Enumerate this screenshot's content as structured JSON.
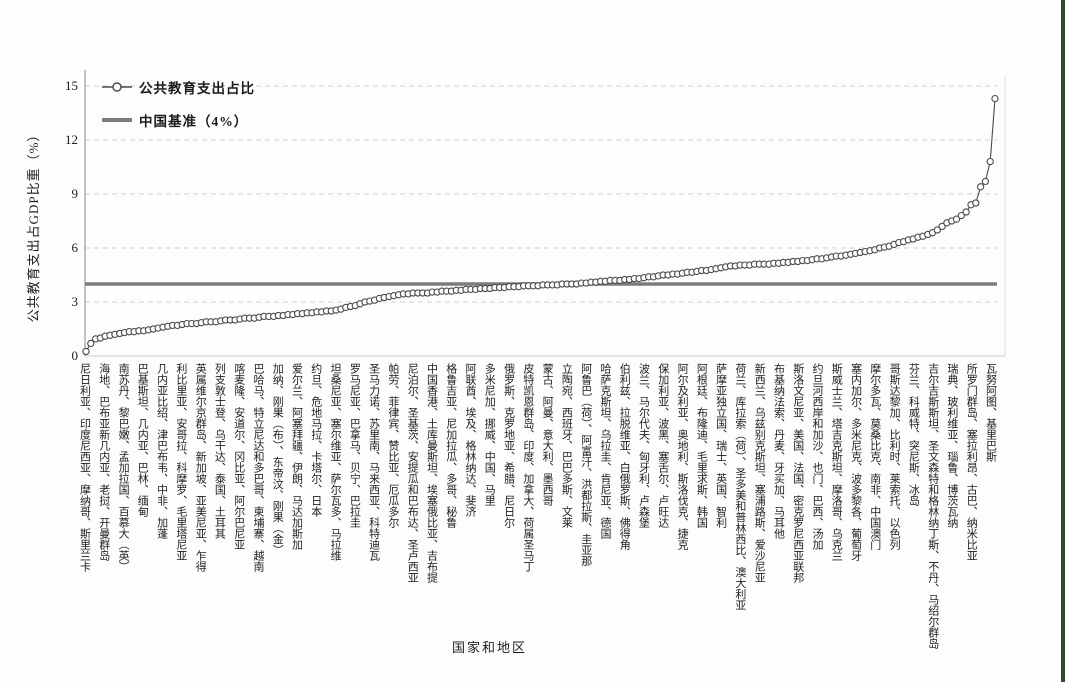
{
  "page": {
    "background": "#fdfdfc",
    "edge_strip_color": "#2e4b34"
  },
  "chart_data": {
    "type": "line",
    "xlabel": "国家和地区",
    "ylabel": "公共教育支出占GDP比重（%）",
    "ylim": [
      0,
      15
    ],
    "yticks": [
      0,
      3,
      6,
      9,
      12,
      15
    ],
    "grid": "dashed-horizontal",
    "legend_position": "top-left-inside",
    "benchmark": 4,
    "legend": [
      {
        "label": "公共教育支出占比",
        "marker": "circle-line"
      },
      {
        "label": "中国基准（4%）",
        "marker": "thick-line"
      }
    ],
    "label_group_size": 4,
    "categories": [
      "尼日利亚",
      "印度尼西亚",
      "摩纳哥",
      "斯里兰卡",
      "海地",
      "巴布亚新几内亚",
      "老挝",
      "开曼群岛",
      "南苏丹",
      "黎巴嫩",
      "孟加拉国",
      "百慕大（英）",
      "巴基斯坦",
      "几内亚",
      "巴林",
      "缅甸",
      "几内亚比绍",
      "津巴布韦",
      "中非",
      "加蓬",
      "利比里亚",
      "安哥拉",
      "科摩罗",
      "毛里塔尼亚",
      "英属维尔京群岛",
      "新加坡",
      "亚美尼亚",
      "乍得",
      "列支敦士登",
      "乌干达",
      "泰国",
      "土耳其",
      "喀麦隆",
      "安道尔",
      "冈比亚",
      "阿尔巴尼亚",
      "巴哈马",
      "特立尼达和多巴哥",
      "柬埔寨",
      "越南",
      "加纳",
      "刚果（布）",
      "东帝汶",
      "刚果（金）",
      "爱尔兰",
      "阿塞拜疆",
      "伊朗",
      "马达加斯加",
      "约旦",
      "危地马拉",
      "卡塔尔",
      "日本",
      "坦桑尼亚",
      "塞尔维亚",
      "萨尔瓦多",
      "马拉维",
      "罗马尼亚",
      "巴拿马",
      "贝宁",
      "巴拉圭",
      "圣马力诺",
      "苏里南",
      "马来西亚",
      "科特迪瓦",
      "帕劳",
      "菲律宾",
      "赞比亚",
      "厄瓜多尔",
      "尼泊尔",
      "圣基茨",
      "安提瓜和巴布达",
      "圣卢西亚",
      "中国香港",
      "土库曼斯坦",
      "埃塞俄比亚",
      "吉布提",
      "格鲁吉亚",
      "尼加拉瓜",
      "多哥",
      "秘鲁",
      "阿联酋",
      "埃及",
      "格林纳达",
      "斐济",
      "多米尼加",
      "挪威",
      "中国",
      "马里",
      "俄罗斯",
      "克罗地亚",
      "希腊",
      "尼日尔",
      "皮特凯恩群岛",
      "印度",
      "加拿大",
      "荷属圣马丁",
      "蒙古",
      "阿曼",
      "意大利",
      "墨西哥",
      "立陶宛",
      "西班牙",
      "巴巴多斯",
      "文莱",
      "阿鲁巴（荷）",
      "阿富汗",
      "洪都拉斯",
      "圭亚那",
      "哈萨克斯坦",
      "乌拉圭",
      "肯尼亚",
      "德国",
      "伯利兹",
      "拉脱维亚",
      "白俄罗斯",
      "佛得角",
      "波兰",
      "马尔代夫",
      "匈牙利",
      "卢森堡",
      "保加利亚",
      "波黑",
      "塞舌尔",
      "卢旺达",
      "阿尔及利亚",
      "奥地利",
      "斯洛伐克",
      "捷克",
      "阿根廷",
      "布隆迪",
      "毛里求斯",
      "韩国",
      "萨摩亚独立国",
      "瑞士",
      "英国",
      "智利",
      "荷兰",
      "库拉索（荷）",
      "圣多美和普林西比",
      "澳大利亚",
      "新西兰",
      "乌兹别克斯坦",
      "塞浦路斯",
      "爱沙尼亚",
      "布基纳法索",
      "丹麦",
      "牙买加",
      "马耳他",
      "斯洛文尼亚",
      "美国",
      "法国",
      "密克罗尼西亚联邦",
      "约旦河西岸和加沙",
      "也门",
      "巴西",
      "汤加",
      "斯威士兰",
      "塔吉克斯坦",
      "摩洛哥",
      "乌克兰",
      "塞内加尔",
      "多米尼克",
      "波多黎各",
      "葡萄牙",
      "摩尔多瓦",
      "莫桑比克",
      "南非",
      "中国澳门",
      "哥斯达黎加",
      "比利时",
      "莱索托",
      "以色列",
      "芬兰",
      "科威特",
      "突尼斯",
      "冰岛",
      "吉尔吉斯斯坦",
      "圣文森特和格林纳丁斯",
      "不丹",
      "马绍尔群岛",
      "瑞典",
      "玻利维亚",
      "瑙鲁",
      "博茨瓦纳",
      "所罗门群岛",
      "塞拉利昂",
      "古巴",
      "纳米比亚",
      "瓦努阿图",
      "基里巴斯"
    ],
    "series": [
      {
        "name": "公共教育支出占比",
        "values": [
          0.25,
          0.7,
          0.95,
          1.0,
          1.1,
          1.15,
          1.2,
          1.25,
          1.3,
          1.35,
          1.35,
          1.4,
          1.4,
          1.45,
          1.5,
          1.55,
          1.6,
          1.65,
          1.7,
          1.7,
          1.75,
          1.8,
          1.8,
          1.8,
          1.85,
          1.9,
          1.9,
          1.9,
          1.95,
          2.0,
          2.0,
          2.0,
          2.05,
          2.1,
          2.1,
          2.1,
          2.15,
          2.2,
          2.2,
          2.2,
          2.25,
          2.25,
          2.3,
          2.3,
          2.35,
          2.35,
          2.4,
          2.4,
          2.45,
          2.45,
          2.5,
          2.5,
          2.55,
          2.6,
          2.7,
          2.75,
          2.8,
          2.9,
          3.0,
          3.05,
          3.1,
          3.2,
          3.25,
          3.3,
          3.35,
          3.4,
          3.45,
          3.45,
          3.5,
          3.5,
          3.5,
          3.5,
          3.55,
          3.55,
          3.6,
          3.6,
          3.6,
          3.65,
          3.65,
          3.7,
          3.7,
          3.7,
          3.75,
          3.75,
          3.75,
          3.8,
          3.8,
          3.8,
          3.85,
          3.85,
          3.85,
          3.9,
          3.9,
          3.9,
          3.9,
          3.95,
          3.95,
          3.95,
          3.95,
          4.0,
          4.0,
          4.0,
          4.0,
          4.05,
          4.05,
          4.1,
          4.1,
          4.15,
          4.15,
          4.2,
          4.2,
          4.2,
          4.25,
          4.25,
          4.3,
          4.3,
          4.35,
          4.4,
          4.4,
          4.45,
          4.5,
          4.5,
          4.55,
          4.55,
          4.6,
          4.65,
          4.65,
          4.7,
          4.75,
          4.75,
          4.8,
          4.85,
          4.9,
          4.95,
          5.0,
          5.0,
          5.05,
          5.05,
          5.05,
          5.1,
          5.1,
          5.1,
          5.1,
          5.15,
          5.15,
          5.2,
          5.2,
          5.25,
          5.25,
          5.3,
          5.3,
          5.35,
          5.4,
          5.4,
          5.45,
          5.5,
          5.55,
          5.55,
          5.6,
          5.65,
          5.7,
          5.75,
          5.8,
          5.85,
          5.9,
          6.0,
          6.05,
          6.1,
          6.2,
          6.3,
          6.35,
          6.45,
          6.5,
          6.6,
          6.65,
          6.75,
          6.85,
          7.0,
          7.2,
          7.4,
          7.5,
          7.6,
          7.8,
          8.0,
          8.4,
          8.5,
          9.4,
          9.7,
          10.8,
          14.3
        ]
      }
    ],
    "style": {
      "series_color": "#4a4a4a",
      "marker_fill": "#ffffff",
      "benchmark_color": "#7d7d7d",
      "grid_color": "#cfcfcf",
      "axis_y_color": "#9b9b9b",
      "axis_x_color": "#c9c9c9",
      "border_color": "#dedede",
      "text_color": "#1c1c1c"
    }
  }
}
